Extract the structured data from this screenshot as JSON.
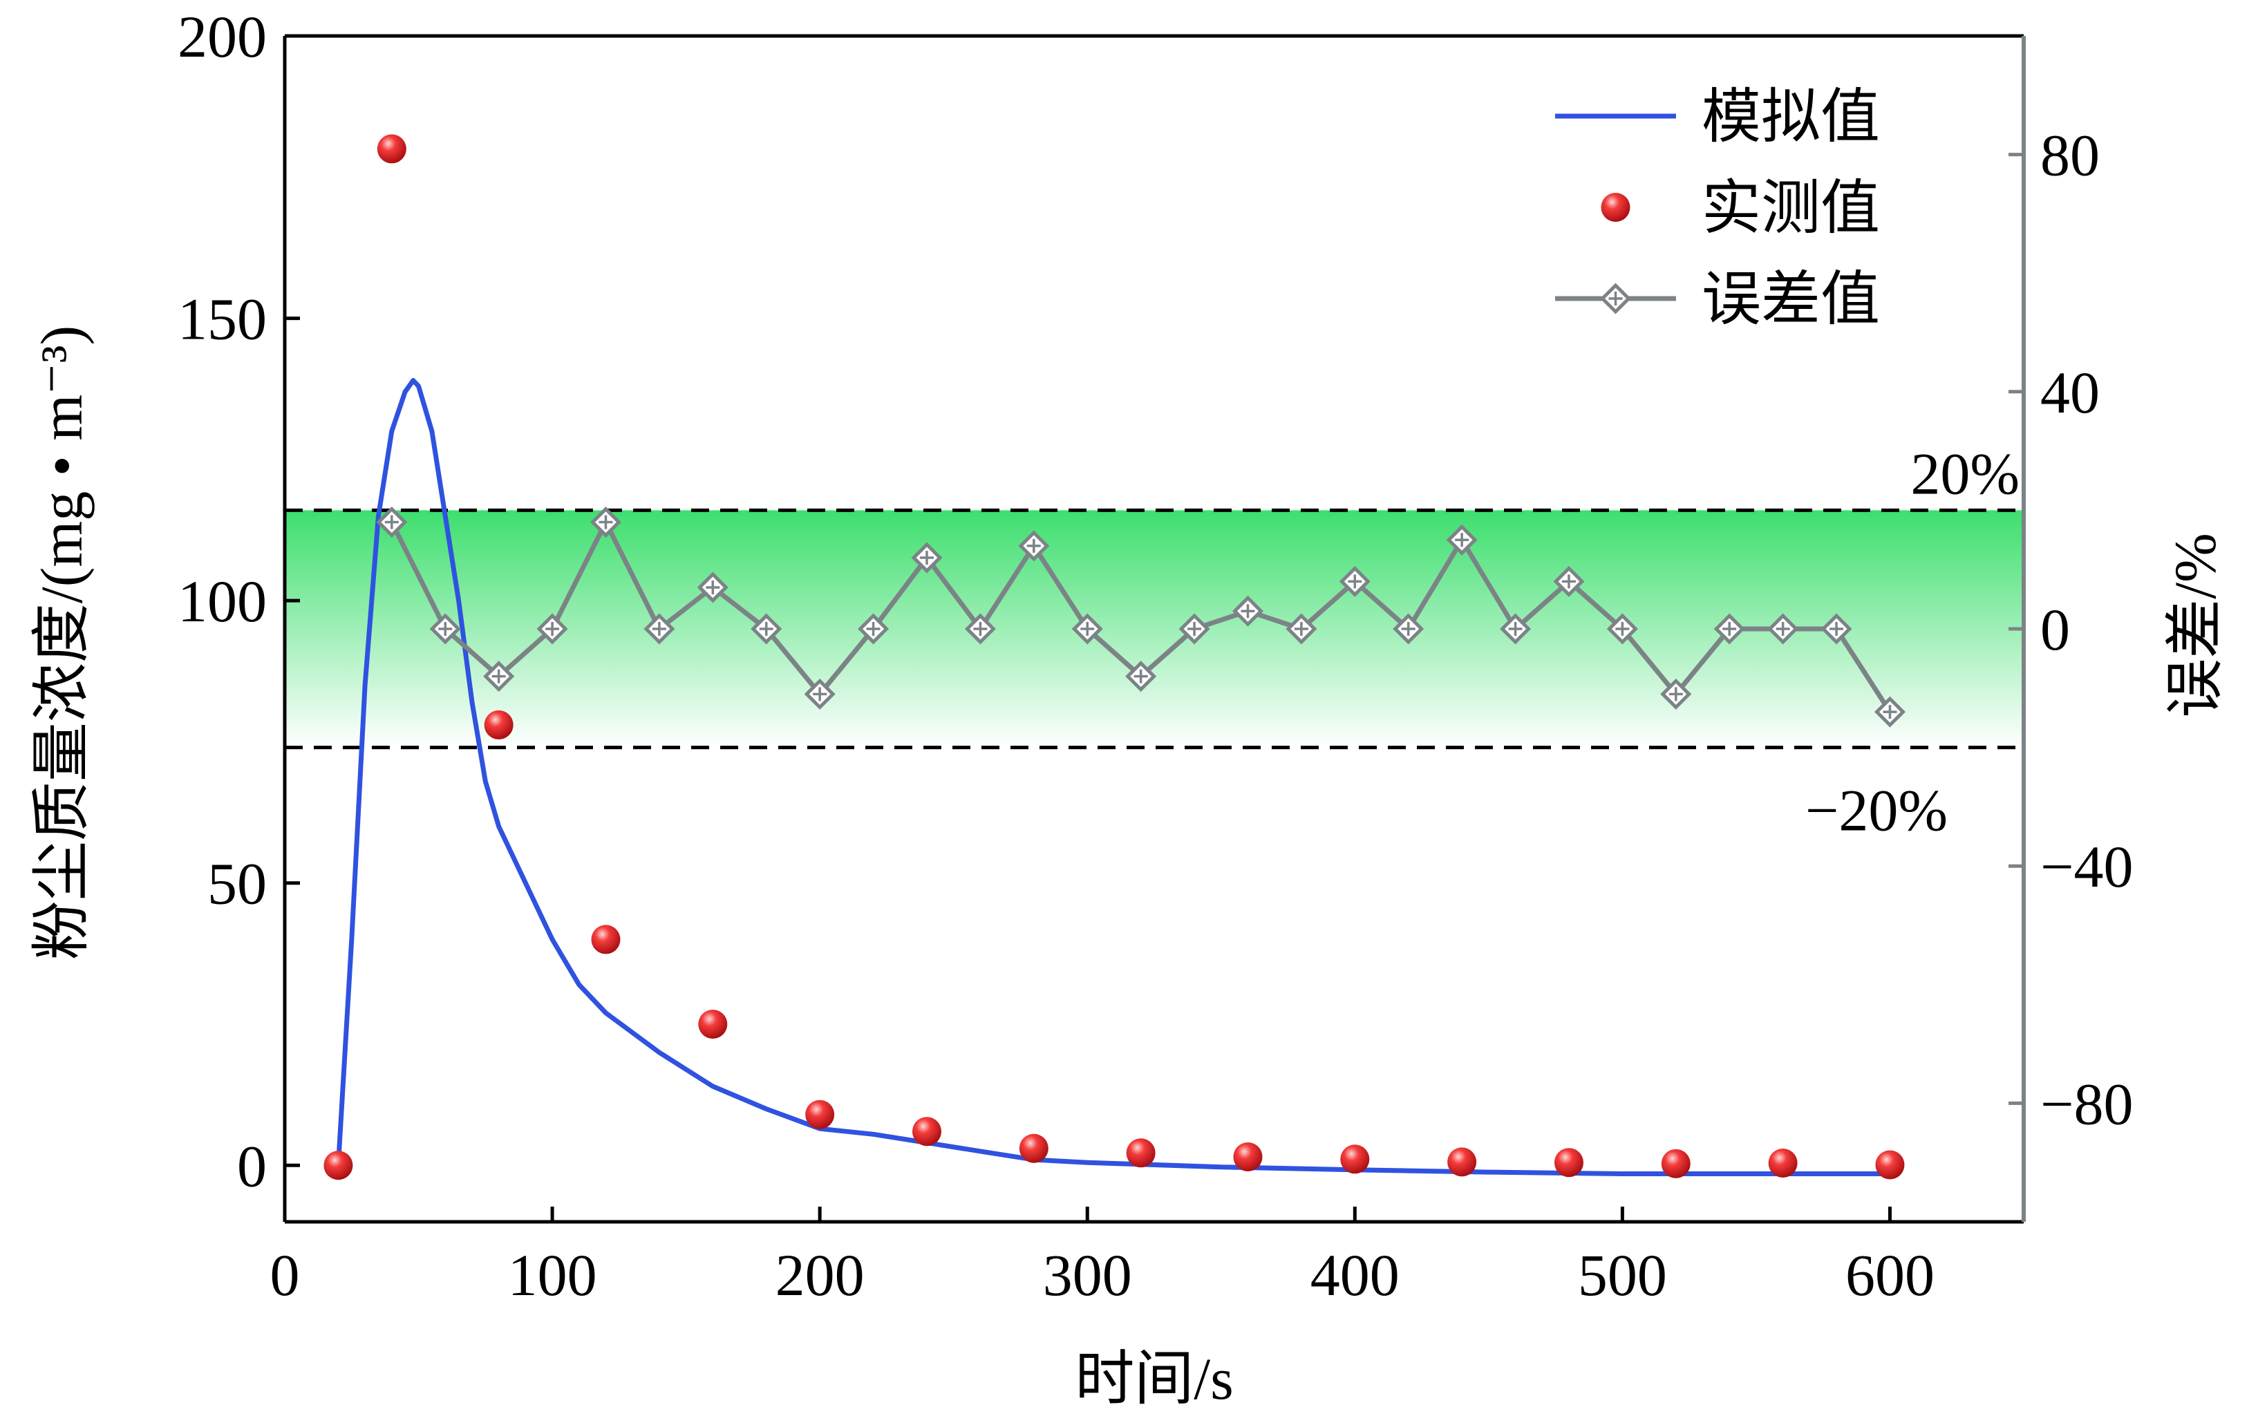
{
  "chart_data": {
    "type": "line",
    "xlabel": "时间/s",
    "ylabel_left": "粉尘质量浓度/(mg • m⁻³)",
    "ylabel_right": "误差/%",
    "xlim": [
      0,
      650
    ],
    "ylim_left": [
      -10,
      200
    ],
    "ylim_right": [
      -100,
      100
    ],
    "x_ticks": [
      0,
      100,
      200,
      300,
      400,
      500,
      600
    ],
    "y_left_ticks": [
      0,
      50,
      100,
      150,
      200
    ],
    "y_right_ticks": [
      -80,
      -40,
      0,
      40,
      80
    ],
    "legend_position": "top-right",
    "band": {
      "lower": -20,
      "upper": 20,
      "lower_label": "−20%",
      "upper_label": "20%",
      "color": "#33dd66"
    },
    "series": [
      {
        "name": "模拟值",
        "kind": "line",
        "axis": "left",
        "color": "#2f52e0",
        "x": [
          20,
          25,
          30,
          35,
          40,
          45,
          48,
          50,
          55,
          60,
          65,
          70,
          75,
          80,
          90,
          100,
          110,
          120,
          140,
          160,
          180,
          200,
          220,
          240,
          260,
          280,
          300,
          350,
          400,
          450,
          500,
          550,
          600
        ],
        "y": [
          0,
          40,
          85,
          115,
          130,
          137,
          139,
          138,
          130,
          115,
          100,
          82,
          68,
          60,
          50,
          40,
          32,
          27,
          20,
          14,
          10,
          6.5,
          5.5,
          4,
          2.5,
          1,
          0.5,
          -0.3,
          -0.8,
          -1.2,
          -1.5,
          -1.5,
          -1.5
        ]
      },
      {
        "name": "实测值",
        "kind": "scatter",
        "axis": "left",
        "color": "#e8202a",
        "x": [
          20,
          40,
          80,
          120,
          160,
          200,
          240,
          280,
          320,
          360,
          400,
          440,
          480,
          520,
          560,
          600
        ],
        "y": [
          0,
          180,
          78,
          40,
          25,
          9,
          6,
          3,
          2.2,
          1.5,
          1.1,
          0.6,
          0.5,
          0.3,
          0.4,
          0.1
        ]
      },
      {
        "name": "误差值",
        "kind": "line-marker",
        "axis": "right",
        "color": "#7c8387",
        "x": [
          40,
          60,
          80,
          100,
          120,
          140,
          160,
          180,
          200,
          220,
          240,
          260,
          280,
          300,
          320,
          340,
          360,
          380,
          400,
          420,
          440,
          460,
          480,
          500,
          520,
          540,
          560,
          580,
          600
        ],
        "y": [
          18,
          0,
          -8,
          0,
          18,
          0,
          7,
          0,
          -11,
          0,
          12,
          0,
          14,
          0,
          -8,
          0,
          3,
          0,
          8,
          0,
          15,
          0,
          8,
          0,
          -11,
          0,
          0,
          0,
          -14
        ]
      }
    ]
  }
}
